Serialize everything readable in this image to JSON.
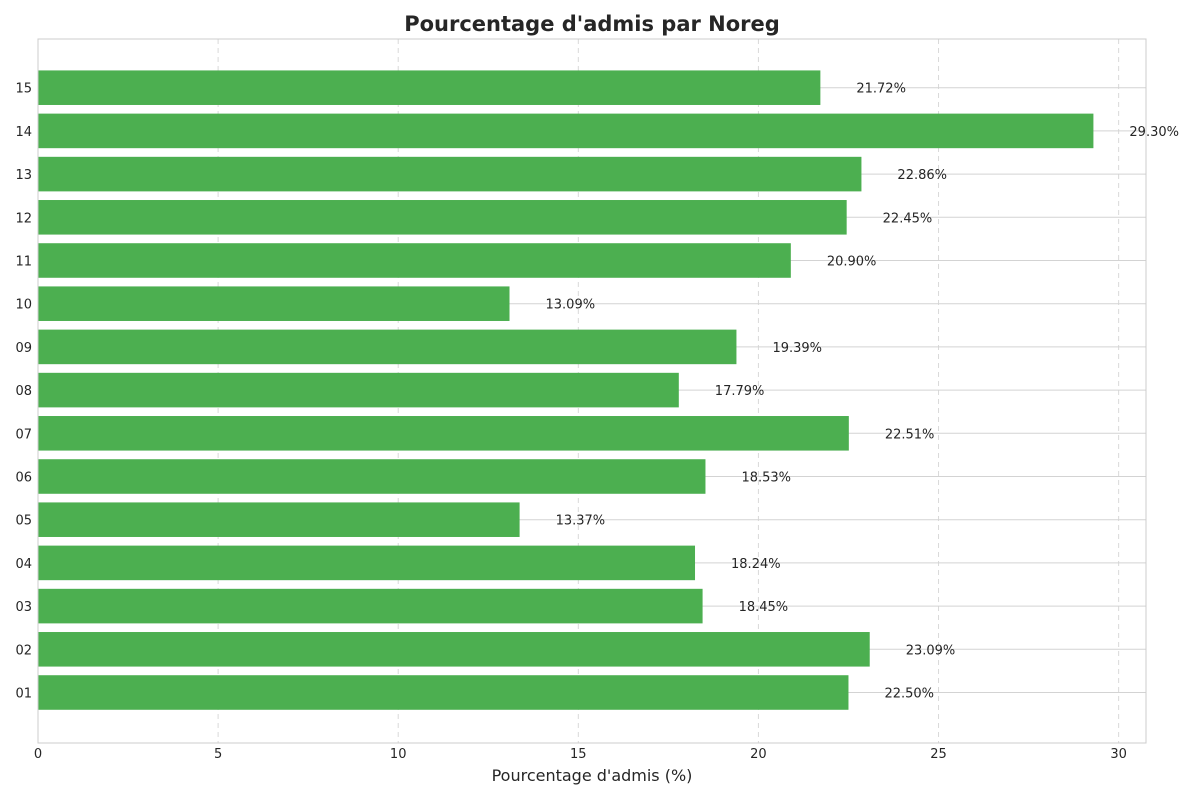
{
  "chart_data": {
    "type": "bar",
    "orientation": "horizontal",
    "title": "Pourcentage d'admis par Noreg",
    "xlabel": "Pourcentage d'admis (%)",
    "ylabel": "",
    "categories": [
      "01",
      "02",
      "03",
      "04",
      "05",
      "06",
      "07",
      "08",
      "09",
      "10",
      "11",
      "12",
      "13",
      "14",
      "15"
    ],
    "values": [
      22.5,
      23.09,
      18.45,
      18.24,
      13.37,
      18.53,
      22.51,
      17.79,
      19.39,
      13.09,
      20.9,
      22.45,
      22.86,
      29.3,
      21.72
    ],
    "data_labels": [
      "22.50%",
      "23.09%",
      "18.45%",
      "18.24%",
      "13.37%",
      "18.53%",
      "22.51%",
      "17.79%",
      "19.39%",
      "13.09%",
      "20.90%",
      "22.45%",
      "22.86%",
      "29.30%",
      "21.72%"
    ],
    "xlim": [
      0,
      30.76
    ],
    "xticks": [
      0,
      5,
      10,
      15,
      20,
      25,
      30
    ],
    "bar_color": "#4caf50",
    "grid": true
  }
}
